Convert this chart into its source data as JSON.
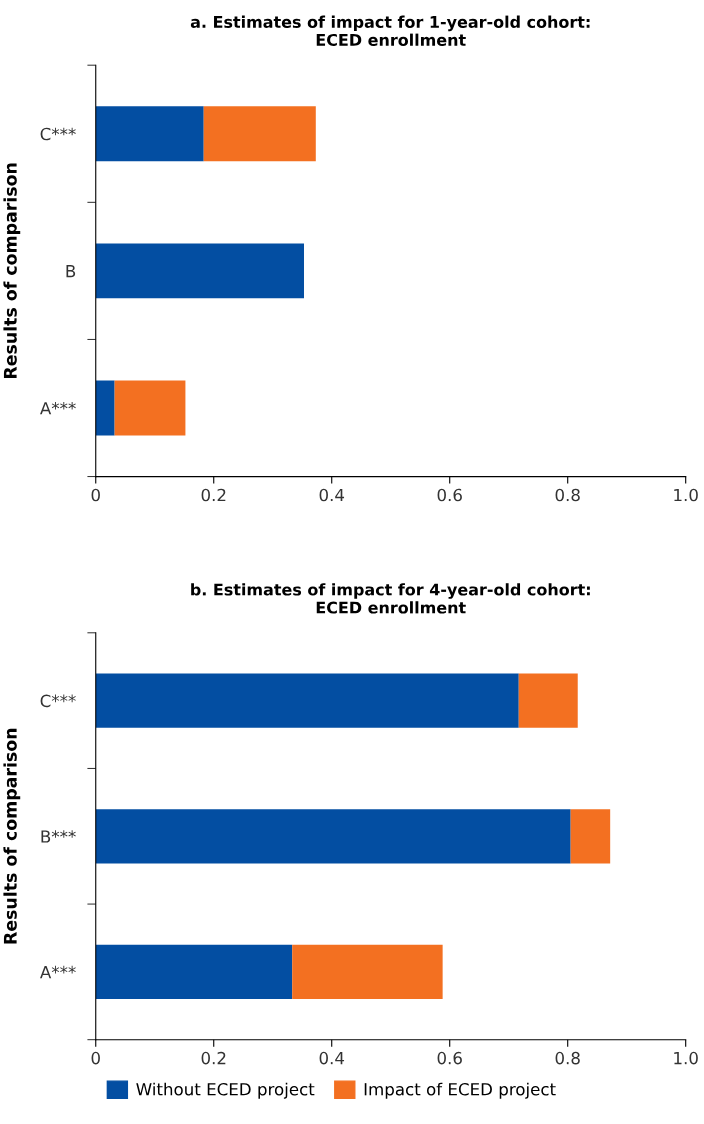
{
  "chart_data": [
    {
      "type": "bar",
      "orientation": "horizontal",
      "stacked": true,
      "title": "a. Estimates of impact for 1-year-old cohort:\nECED enrollment",
      "ylabel": "Results of comparison",
      "categories": [
        "C***",
        "B",
        "A***"
      ],
      "series": [
        {
          "color": "#034ea2",
          "values": [
            0.183,
            0.353,
            0.032
          ]
        },
        {
          "color": "#f37021",
          "values": [
            0.19,
            0,
            0.12
          ]
        }
      ],
      "xlim": [
        0,
        1.0
      ],
      "xticks": [
        0,
        0.2,
        0.4,
        0.6,
        0.8,
        {
          "value": 1.0,
          "label": "1.0"
        }
      ],
      "grid": false
    },
    {
      "type": "bar",
      "orientation": "horizontal",
      "stacked": true,
      "title": "b. Estimates of impact for 4-year-old cohort:\nECED enrollment",
      "ylabel": "Results of comparison",
      "categories": [
        "C***",
        "B***",
        "A***"
      ],
      "series": [
        {
          "name": "Without ECED project",
          "color": "#034ea2",
          "values": [
            0.717,
            0.805,
            0.333
          ]
        },
        {
          "name": "Impact of ECED project",
          "color": "#f37021",
          "values": [
            0.1,
            0.067,
            0.255
          ]
        }
      ],
      "xlim": [
        0,
        1.0
      ],
      "xticks": [
        0,
        0.2,
        0.4,
        0.6,
        0.8,
        {
          "value": 1.0,
          "label": "1.0"
        }
      ],
      "grid": false,
      "legend": "bottom"
    }
  ]
}
